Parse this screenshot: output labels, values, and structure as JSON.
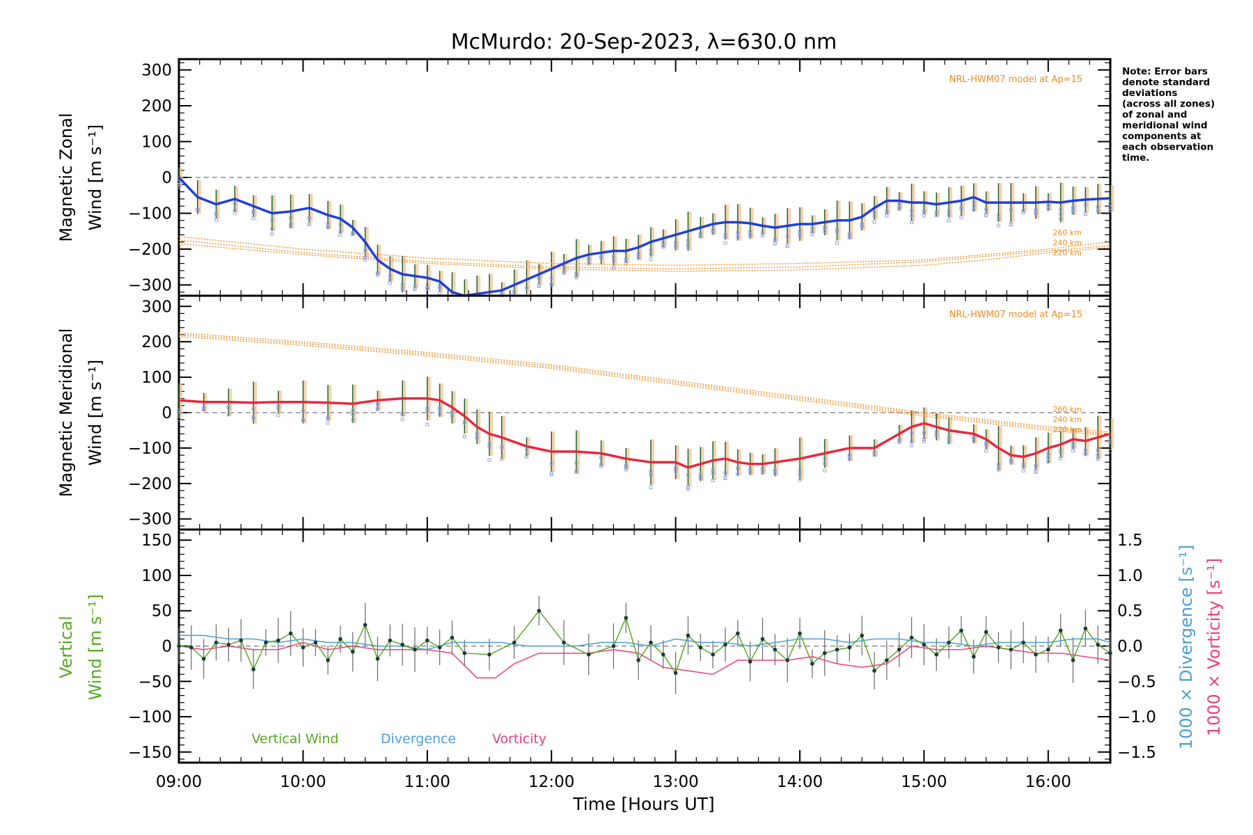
{
  "title": "McMurdo: 20-Sep-2023, λ=630.0 nm",
  "note_lines": [
    "Note: Error bars",
    "denote standard",
    "deviations",
    "(across all zones)",
    "of zonal and",
    "meridional wind",
    "components at",
    "each observation",
    "time."
  ],
  "model_label": "NRL-HWM07 model at Ap=15",
  "altitude_labels": [
    "260 km",
    "240 km",
    "220 km"
  ],
  "xlabel": "Time [Hours UT]",
  "xticks": [
    "09:00",
    "10:00",
    "11:00",
    "12:00",
    "13:00",
    "14:00",
    "15:00",
    "16:00"
  ],
  "colors": {
    "zonal": "#1f3fd8",
    "meridional": "#e8283c",
    "model": "#f08a1e",
    "vertical": "#55aa22",
    "divergence": "#4a9ed8",
    "vorticity": "#ee3d7e",
    "zone_points": "#9aa4dc",
    "errbar": "#1d5a2a"
  },
  "chart_data": [
    {
      "type": "line",
      "title": "McMurdo: 20-Sep-2023, λ=630.0 nm",
      "ylabel_line1": "Magnetic Zonal",
      "ylabel_line2": "Wind [m s⁻¹]",
      "ylim": [
        -330,
        330
      ],
      "yticks": [
        "300",
        "200",
        "100",
        "0",
        "−100",
        "−200",
        "−300"
      ],
      "xlim": [
        9.0,
        16.5
      ],
      "series": [
        {
          "name": "Magnetic Zonal Wind",
          "x": [
            9.0,
            9.15,
            9.3,
            9.45,
            9.6,
            9.75,
            9.9,
            10.05,
            10.2,
            10.3,
            10.4,
            10.5,
            10.6,
            10.7,
            10.8,
            10.9,
            11.0,
            11.1,
            11.2,
            11.3,
            11.4,
            11.5,
            11.6,
            11.7,
            11.8,
            11.9,
            12.0,
            12.1,
            12.2,
            12.3,
            12.4,
            12.5,
            12.6,
            12.7,
            12.8,
            12.9,
            13.0,
            13.1,
            13.2,
            13.3,
            13.4,
            13.5,
            13.6,
            13.7,
            13.8,
            13.9,
            14.0,
            14.1,
            14.2,
            14.3,
            14.4,
            14.5,
            14.6,
            14.7,
            14.8,
            14.9,
            15.0,
            15.1,
            15.2,
            15.3,
            15.4,
            15.5,
            15.6,
            15.7,
            15.8,
            15.9,
            16.0,
            16.1,
            16.2,
            16.3,
            16.4,
            16.5
          ],
          "y": [
            0,
            -55,
            -75,
            -60,
            -80,
            -100,
            -95,
            -85,
            -105,
            -115,
            -140,
            -180,
            -230,
            -255,
            -270,
            -275,
            -280,
            -290,
            -320,
            -330,
            -325,
            -320,
            -315,
            -300,
            -285,
            -270,
            -255,
            -240,
            -225,
            -215,
            -210,
            -205,
            -205,
            -195,
            -180,
            -170,
            -160,
            -150,
            -140,
            -130,
            -125,
            -125,
            -128,
            -135,
            -140,
            -135,
            -130,
            -130,
            -125,
            -120,
            -120,
            -110,
            -85,
            -65,
            -65,
            -70,
            -70,
            -75,
            -70,
            -65,
            -55,
            -70,
            -70,
            -70,
            -70,
            -70,
            -68,
            -70,
            -65,
            -62,
            -60,
            -58
          ]
        },
        {
          "name": "HWM07 260 km",
          "x": [
            9.0,
            10.0,
            11.0,
            12.0,
            13.0,
            14.0,
            15.0,
            15.5,
            16.0,
            16.5
          ],
          "y": [
            -165,
            -200,
            -225,
            -240,
            -245,
            -240,
            -230,
            -215,
            -200,
            -180
          ]
        },
        {
          "name": "HWM07 240 km",
          "x": [
            9.0,
            10.0,
            11.0,
            12.0,
            13.0,
            14.0,
            15.0,
            15.5,
            16.0,
            16.5
          ],
          "y": [
            -175,
            -210,
            -235,
            -250,
            -255,
            -250,
            -235,
            -220,
            -205,
            -190
          ]
        },
        {
          "name": "HWM07 220 km",
          "x": [
            9.0,
            10.0,
            11.0,
            12.0,
            13.0,
            14.0,
            15.0,
            15.5,
            16.0,
            16.5
          ],
          "y": [
            -185,
            -215,
            -240,
            -255,
            -262,
            -258,
            -245,
            -230,
            -210,
            -195
          ]
        }
      ],
      "error_sd": 35
    },
    {
      "type": "line",
      "ylabel_line1": "Magnetic Meridional",
      "ylabel_line2": "Wind [m s⁻¹]",
      "ylim": [
        -330,
        330
      ],
      "yticks": [
        "300",
        "200",
        "100",
        "0",
        "−100",
        "−200",
        "−300"
      ],
      "xlim": [
        9.0,
        16.5
      ],
      "series": [
        {
          "name": "Magnetic Meridional Wind",
          "x": [
            9.0,
            9.2,
            9.4,
            9.6,
            9.8,
            10.0,
            10.2,
            10.4,
            10.6,
            10.8,
            11.0,
            11.1,
            11.2,
            11.3,
            11.4,
            11.5,
            11.6,
            11.8,
            12.0,
            12.2,
            12.4,
            12.6,
            12.8,
            13.0,
            13.1,
            13.2,
            13.3,
            13.4,
            13.5,
            13.6,
            13.7,
            13.8,
            14.0,
            14.2,
            14.4,
            14.6,
            14.8,
            14.9,
            15.0,
            15.1,
            15.2,
            15.4,
            15.5,
            15.6,
            15.7,
            15.8,
            15.9,
            16.0,
            16.1,
            16.2,
            16.3,
            16.4,
            16.5
          ],
          "y": [
            35,
            30,
            30,
            28,
            30,
            30,
            28,
            25,
            35,
            40,
            40,
            35,
            15,
            -10,
            -40,
            -60,
            -70,
            -95,
            -110,
            -110,
            -115,
            -130,
            -140,
            -140,
            -155,
            -145,
            -135,
            -130,
            -140,
            -145,
            -145,
            -140,
            -130,
            -115,
            -100,
            -100,
            -60,
            -40,
            -30,
            -40,
            -50,
            -60,
            -75,
            -100,
            -120,
            -125,
            -115,
            -100,
            -90,
            -75,
            -80,
            -70,
            -60
          ]
        },
        {
          "name": "HWM07 260 km",
          "x": [
            9.0,
            10.0,
            11.0,
            12.0,
            13.0,
            14.0,
            15.0,
            15.5,
            16.0,
            16.5
          ],
          "y": [
            225,
            200,
            170,
            135,
            90,
            45,
            0,
            -20,
            -40,
            -55
          ]
        },
        {
          "name": "HWM07 240 km",
          "x": [
            9.0,
            10.0,
            11.0,
            12.0,
            13.0,
            14.0,
            15.0,
            15.5,
            16.0,
            16.5
          ],
          "y": [
            220,
            195,
            165,
            130,
            85,
            40,
            -5,
            -25,
            -45,
            -60
          ]
        },
        {
          "name": "HWM07 220 km",
          "x": [
            9.0,
            10.0,
            11.0,
            12.0,
            13.0,
            14.0,
            15.0,
            15.5,
            16.0,
            16.5
          ],
          "y": [
            215,
            190,
            160,
            125,
            80,
            35,
            -10,
            -30,
            -50,
            -65
          ]
        }
      ],
      "error_sd": 40
    },
    {
      "type": "line",
      "ylabel_left_line1": "Vertical",
      "ylabel_left_line2": "Wind [m s⁻¹]",
      "ylabel_right_a": "1000 × Divergence [s⁻¹]",
      "ylabel_right_b": "1000 × Vorticity [s⁻¹]",
      "ylim": [
        -165,
        165
      ],
      "yticks": [
        "150",
        "100",
        "50",
        "0",
        "−50",
        "−100",
        "−150"
      ],
      "y2lim": [
        -1.65,
        1.65
      ],
      "y2ticks": [
        "1.5",
        "1.0",
        "0.5",
        "0.0",
        "−0.5",
        "−1.0",
        "−1.5"
      ],
      "xlim": [
        9.0,
        16.5
      ],
      "legend": [
        "Vertical Wind",
        "Divergence",
        "Vorticity"
      ],
      "series": [
        {
          "name": "Vertical Wind",
          "x": [
            9.0,
            9.1,
            9.2,
            9.3,
            9.4,
            9.5,
            9.6,
            9.7,
            9.8,
            9.9,
            10.0,
            10.1,
            10.2,
            10.3,
            10.4,
            10.5,
            10.6,
            10.7,
            10.8,
            10.9,
            11.0,
            11.1,
            11.2,
            11.3,
            11.5,
            11.7,
            11.9,
            12.1,
            12.3,
            12.5,
            12.6,
            12.7,
            12.8,
            12.9,
            13.0,
            13.1,
            13.2,
            13.3,
            13.4,
            13.5,
            13.6,
            13.7,
            13.8,
            13.9,
            14.0,
            14.1,
            14.2,
            14.3,
            14.4,
            14.5,
            14.6,
            14.7,
            14.8,
            14.9,
            15.0,
            15.1,
            15.2,
            15.3,
            15.4,
            15.5,
            15.6,
            15.7,
            15.8,
            15.9,
            16.0,
            16.1,
            16.2,
            16.3,
            16.4,
            16.5
          ],
          "y": [
            0,
            -2,
            -18,
            5,
            2,
            8,
            -33,
            5,
            8,
            18,
            -2,
            5,
            -20,
            10,
            -8,
            30,
            -18,
            8,
            2,
            -5,
            8,
            -2,
            12,
            -10,
            -12,
            5,
            50,
            5,
            -12,
            0,
            40,
            -20,
            5,
            -12,
            -38,
            15,
            -2,
            -12,
            2,
            18,
            -22,
            10,
            -5,
            -20,
            18,
            -25,
            -10,
            -5,
            -2,
            15,
            -35,
            -20,
            -5,
            12,
            2,
            -12,
            5,
            22,
            -15,
            20,
            -2,
            -5,
            5,
            -12,
            -5,
            22,
            -20,
            25,
            2,
            -10
          ]
        },
        {
          "name": "Divergence",
          "x": [
            9.0,
            9.2,
            9.4,
            9.6,
            9.8,
            10.0,
            10.2,
            10.4,
            10.6,
            10.8,
            11.0,
            11.2,
            11.4,
            11.6,
            11.8,
            12.0,
            12.2,
            12.4,
            12.6,
            12.8,
            13.0,
            13.2,
            13.4,
            13.6,
            13.8,
            14.0,
            14.2,
            14.4,
            14.6,
            14.8,
            15.0,
            15.2,
            15.4,
            15.6,
            15.8,
            16.0,
            16.2,
            16.4,
            16.5
          ],
          "y": [
            0.15,
            0.15,
            0.1,
            0.1,
            0.05,
            0.1,
            0.05,
            0.05,
            0.0,
            0.0,
            -0.05,
            0.05,
            0.05,
            0.05,
            0.0,
            0.0,
            0.0,
            0.05,
            0.05,
            0.0,
            0.1,
            0.05,
            0.05,
            0.0,
            0.05,
            0.1,
            0.1,
            0.05,
            0.1,
            0.1,
            0.05,
            0.05,
            0.0,
            0.05,
            0.05,
            0.05,
            0.1,
            0.1,
            0.05
          ]
        },
        {
          "name": "Vorticity",
          "x": [
            9.0,
            9.2,
            9.4,
            9.6,
            9.8,
            10.0,
            10.2,
            10.4,
            10.6,
            10.8,
            11.0,
            11.2,
            11.4,
            11.55,
            11.7,
            11.9,
            12.1,
            12.3,
            12.5,
            12.7,
            12.9,
            13.1,
            13.3,
            13.5,
            13.7,
            13.9,
            14.1,
            14.3,
            14.5,
            14.7,
            14.9,
            15.1,
            15.3,
            15.5,
            15.7,
            15.9,
            16.1,
            16.3,
            16.5
          ],
          "y": [
            0.0,
            -0.05,
            0.0,
            -0.05,
            -0.05,
            0.05,
            -0.05,
            0.0,
            -0.05,
            -0.05,
            -0.05,
            -0.1,
            -0.45,
            -0.45,
            -0.25,
            -0.1,
            -0.1,
            -0.1,
            -0.05,
            -0.1,
            -0.3,
            -0.35,
            -0.4,
            -0.2,
            -0.2,
            -0.2,
            -0.15,
            -0.25,
            -0.3,
            -0.25,
            0.0,
            -0.05,
            -0.05,
            0.0,
            -0.05,
            -0.1,
            -0.1,
            -0.15,
            -0.2
          ]
        }
      ],
      "error_sd": 25
    }
  ]
}
